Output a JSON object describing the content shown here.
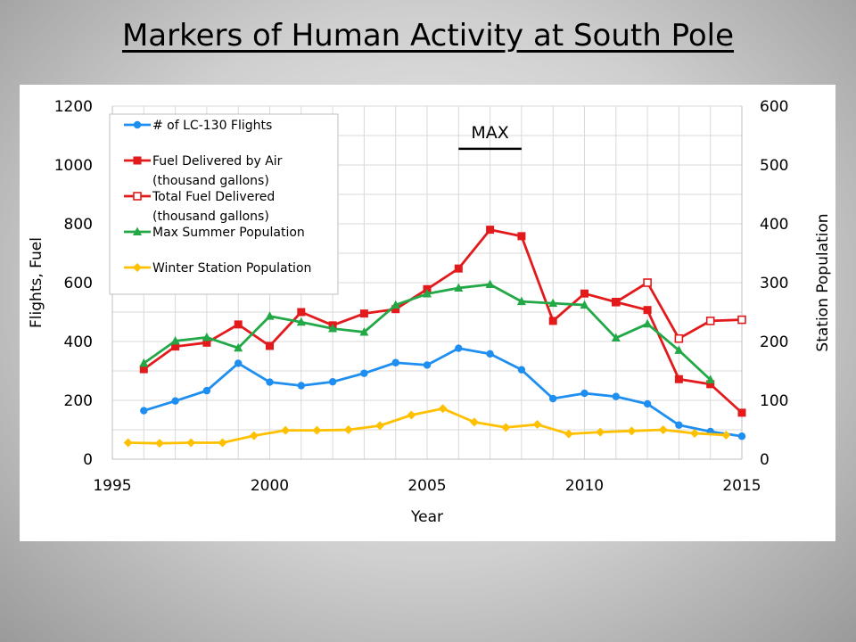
{
  "slide": {
    "title": "Markers of Human Activity at South Pole"
  },
  "chart_data": {
    "type": "line",
    "xlabel": "Year",
    "ylabel": "Flights, Fuel",
    "y2label": "Station Population",
    "xlim": [
      1995,
      2015
    ],
    "xticks": [
      1995,
      2000,
      2005,
      2010,
      2015
    ],
    "ylim": [
      0,
      1200
    ],
    "yticks": [
      0,
      200,
      400,
      600,
      800,
      1000,
      1200
    ],
    "y2lim": [
      0,
      600
    ],
    "y2ticks": [
      0,
      100,
      200,
      300,
      400,
      500,
      600
    ],
    "grid": true,
    "legend": "top-left",
    "annotation": {
      "text": "MAX",
      "x_start": 2006.0,
      "x_end": 2008.0
    },
    "series": [
      {
        "name": "# of LC-130 Flights",
        "axis": "left",
        "color": "#1f8ef1",
        "marker": "circle",
        "x": [
          1996,
          1997,
          1998,
          1999,
          2000,
          2001,
          2002,
          2003,
          2004,
          2005,
          2006,
          2007,
          2008,
          2009,
          2010,
          2011,
          2012,
          2013,
          2014,
          2015
        ],
        "values": [
          165,
          198,
          233,
          326,
          262,
          250,
          263,
          292,
          328,
          320,
          377,
          358,
          304,
          206,
          224,
          213,
          188,
          116,
          94,
          78
        ]
      },
      {
        "name": "Fuel Delivered by Air (thousand gallons)",
        "axis": "left",
        "color": "#e31a1c",
        "marker": "square",
        "x": [
          1996,
          1997,
          1998,
          1999,
          2000,
          2001,
          2002,
          2003,
          2004,
          2005,
          2006,
          2007,
          2008,
          2009,
          2010,
          2011,
          2012,
          2013,
          2014,
          2015
        ],
        "values": [
          306,
          383,
          396,
          458,
          385,
          500,
          455,
          495,
          510,
          578,
          648,
          780,
          758,
          470,
          563,
          534,
          507,
          272,
          255,
          158
        ]
      },
      {
        "name": "Total Fuel Delivered (thousand gallons)",
        "axis": "left",
        "color": "#e31a1c",
        "marker": "square-open",
        "x": [
          2011,
          2012,
          2013,
          2014,
          2015
        ],
        "values": [
          534,
          600,
          410,
          470,
          474
        ]
      },
      {
        "name": "Max Summer Population",
        "axis": "right",
        "color": "#22a846",
        "marker": "triangle",
        "x": [
          1996,
          1997,
          1998,
          1999,
          2000,
          2001,
          2002,
          2003,
          2004,
          2005,
          2006,
          2007,
          2008,
          2009,
          2010,
          2011,
          2012,
          2013,
          2014
        ],
        "values": [
          163,
          201,
          207,
          189,
          243,
          233,
          222,
          216,
          262,
          281,
          291,
          297,
          268,
          265,
          262,
          206,
          230,
          185,
          135
        ]
      },
      {
        "name": "Winter Station Population",
        "axis": "right",
        "color": "#ffc000",
        "marker": "diamond",
        "x": [
          1995.5,
          1996.5,
          1997.5,
          1998.5,
          1999.5,
          2000.5,
          2001.5,
          2002.5,
          2003.5,
          2004.5,
          2005.5,
          2006.5,
          2007.5,
          2008.5,
          2009.5,
          2010.5,
          2011.5,
          2012.5,
          2013.5,
          2014.5
        ],
        "values": [
          28,
          27,
          28,
          28,
          40,
          49,
          49,
          50,
          57,
          75,
          86,
          63,
          54,
          59,
          43,
          46,
          48,
          50,
          44,
          41
        ]
      }
    ],
    "legend_entries": [
      {
        "lines": [
          "# of LC-130 Flights"
        ],
        "color": "#1f8ef1",
        "marker": "circle"
      },
      {
        "lines": [
          "Fuel Delivered by Air",
          "(thousand gallons)"
        ],
        "color": "#e31a1c",
        "marker": "square"
      },
      {
        "lines": [
          "Total Fuel Delivered",
          "(thousand gallons)"
        ],
        "color": "#e31a1c",
        "marker": "square-open"
      },
      {
        "lines": [
          "Max Summer Population"
        ],
        "color": "#22a846",
        "marker": "triangle"
      },
      {
        "lines": [
          "Winter Station Population"
        ],
        "color": "#ffc000",
        "marker": "diamond"
      }
    ]
  }
}
